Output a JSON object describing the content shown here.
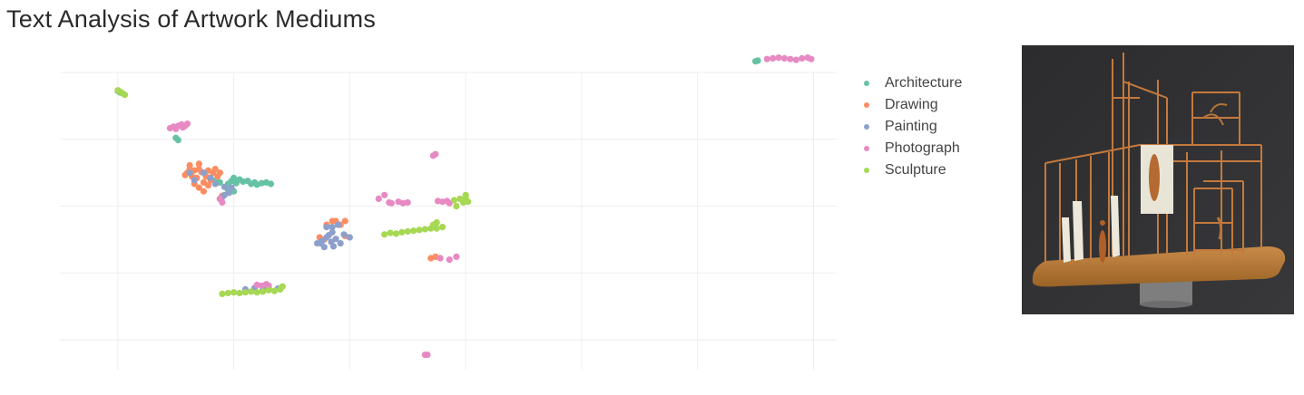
{
  "title": "Text Analysis of Artwork Mediums",
  "colors": {
    "Architecture": "#66c2a5",
    "Drawing": "#fc8d62",
    "Painting": "#8da0cb",
    "Photograph": "#e78ac3",
    "Sculpture": "#a6d854",
    "grid": "#eeeeee"
  },
  "artwork_image": {
    "icon": "wire-sculpture-house-photo"
  },
  "chart_data": {
    "type": "scatter",
    "title": "Text Analysis of Artwork Mediums",
    "xlabel": "",
    "ylabel": "",
    "xlim": [
      -0.5,
      6.2
    ],
    "ylim": [
      -0.4,
      3.6
    ],
    "grid": true,
    "legend_position": "right",
    "series": [
      {
        "name": "Architecture",
        "points": [
          [
            0.0,
            3.35
          ],
          [
            0.02,
            3.33
          ],
          [
            0.5,
            2.72
          ],
          [
            0.52,
            2.69
          ],
          [
            0.85,
            2.15
          ],
          [
            0.88,
            2.12
          ],
          [
            0.95,
            2.1
          ],
          [
            0.98,
            2.14
          ],
          [
            1.0,
            2.18
          ],
          [
            1.02,
            2.11
          ],
          [
            1.05,
            2.16
          ],
          [
            1.08,
            2.13
          ],
          [
            1.12,
            2.14
          ],
          [
            1.15,
            2.1
          ],
          [
            1.18,
            2.12
          ],
          [
            1.2,
            2.09
          ],
          [
            1.24,
            2.11
          ],
          [
            1.28,
            2.12
          ],
          [
            1.32,
            2.1
          ],
          [
            0.95,
            2.02
          ],
          [
            1.0,
            2.0
          ],
          [
            5.5,
            3.75
          ],
          [
            5.52,
            3.76
          ]
        ]
      },
      {
        "name": "Drawing",
        "points": [
          [
            0.58,
            2.22
          ],
          [
            0.6,
            2.25
          ],
          [
            0.62,
            2.3
          ],
          [
            0.64,
            2.2
          ],
          [
            0.66,
            2.28
          ],
          [
            0.68,
            2.18
          ],
          [
            0.7,
            2.3
          ],
          [
            0.72,
            2.26
          ],
          [
            0.74,
            2.12
          ],
          [
            0.76,
            2.2
          ],
          [
            0.78,
            2.28
          ],
          [
            0.8,
            2.15
          ],
          [
            0.82,
            2.25
          ],
          [
            0.84,
            2.3
          ],
          [
            0.86,
            2.2
          ],
          [
            0.66,
            2.1
          ],
          [
            0.7,
            2.05
          ],
          [
            0.74,
            2.0
          ],
          [
            0.78,
            2.08
          ],
          [
            0.62,
            2.35
          ],
          [
            0.7,
            2.37
          ],
          [
            0.88,
            2.25
          ],
          [
            0.9,
            1.94
          ],
          [
            0.88,
            1.9
          ],
          [
            1.8,
            1.55
          ],
          [
            1.88,
            1.6
          ],
          [
            1.92,
            1.55
          ],
          [
            1.96,
            1.6
          ],
          [
            1.74,
            1.38
          ],
          [
            1.78,
            1.35
          ],
          [
            1.96,
            1.4
          ],
          [
            1.85,
            1.6
          ],
          [
            2.7,
            1.1
          ],
          [
            2.74,
            1.12
          ],
          [
            2.78,
            1.1
          ]
        ]
      },
      {
        "name": "Painting",
        "points": [
          [
            0.62,
            2.25
          ],
          [
            0.66,
            2.15
          ],
          [
            0.74,
            2.25
          ],
          [
            0.8,
            2.18
          ],
          [
            0.84,
            2.1
          ],
          [
            0.92,
            2.06
          ],
          [
            0.96,
            1.98
          ],
          [
            0.98,
            2.05
          ],
          [
            0.92,
            1.95
          ],
          [
            0.9,
            1.92
          ],
          [
            1.72,
            1.3
          ],
          [
            1.76,
            1.33
          ],
          [
            1.8,
            1.38
          ],
          [
            1.84,
            1.32
          ],
          [
            1.88,
            1.36
          ],
          [
            1.92,
            1.3
          ],
          [
            1.95,
            1.42
          ],
          [
            2.0,
            1.38
          ],
          [
            1.85,
            1.45
          ],
          [
            1.85,
            1.52
          ],
          [
            1.8,
            1.52
          ],
          [
            1.9,
            1.55
          ],
          [
            1.78,
            1.25
          ],
          [
            1.86,
            1.26
          ],
          [
            1.82,
            1.41
          ],
          [
            1.75,
            1.3
          ],
          [
            1.1,
            0.68
          ],
          [
            1.18,
            0.7
          ],
          [
            1.25,
            0.68
          ],
          [
            1.3,
            0.7
          ],
          [
            1.38,
            0.69
          ]
        ]
      },
      {
        "name": "Photograph",
        "points": [
          [
            0.45,
            2.85
          ],
          [
            0.48,
            2.87
          ],
          [
            0.5,
            2.84
          ],
          [
            0.52,
            2.88
          ],
          [
            0.55,
            2.9
          ],
          [
            0.58,
            2.88
          ],
          [
            0.6,
            2.91
          ],
          [
            0.56,
            2.86
          ],
          [
            0.88,
            1.9
          ],
          [
            0.9,
            1.85
          ],
          [
            2.72,
            2.48
          ],
          [
            2.74,
            2.5
          ],
          [
            2.25,
            1.9
          ],
          [
            2.3,
            1.95
          ],
          [
            2.34,
            1.85
          ],
          [
            2.36,
            1.84
          ],
          [
            2.42,
            1.86
          ],
          [
            2.46,
            1.84
          ],
          [
            2.5,
            1.85
          ],
          [
            2.76,
            1.87
          ],
          [
            2.8,
            1.86
          ],
          [
            2.84,
            1.87
          ],
          [
            2.86,
            1.84
          ],
          [
            2.78,
            1.1
          ],
          [
            2.86,
            1.08
          ],
          [
            2.92,
            1.12
          ],
          [
            1.2,
            0.74
          ],
          [
            1.24,
            0.73
          ],
          [
            1.28,
            0.75
          ],
          [
            1.3,
            0.73
          ],
          [
            2.65,
            -0.2
          ],
          [
            2.67,
            -0.2
          ],
          [
            5.6,
            3.78
          ],
          [
            5.65,
            3.79
          ],
          [
            5.7,
            3.8
          ],
          [
            5.75,
            3.79
          ],
          [
            5.8,
            3.78
          ],
          [
            5.85,
            3.77
          ],
          [
            5.9,
            3.79
          ],
          [
            5.95,
            3.8
          ],
          [
            5.98,
            3.78
          ]
        ]
      },
      {
        "name": "Sculpture",
        "points": [
          [
            0.0,
            3.36
          ],
          [
            0.02,
            3.34
          ],
          [
            0.04,
            3.32
          ],
          [
            0.06,
            3.3
          ],
          [
            2.3,
            1.42
          ],
          [
            2.35,
            1.44
          ],
          [
            2.4,
            1.43
          ],
          [
            2.45,
            1.45
          ],
          [
            2.5,
            1.46
          ],
          [
            2.55,
            1.47
          ],
          [
            2.6,
            1.48
          ],
          [
            2.65,
            1.49
          ],
          [
            2.7,
            1.5
          ],
          [
            2.75,
            1.5
          ],
          [
            2.8,
            1.52
          ],
          [
            2.72,
            1.55
          ],
          [
            2.75,
            1.58
          ],
          [
            2.9,
            1.88
          ],
          [
            2.95,
            1.9
          ],
          [
            3.0,
            1.92
          ],
          [
            2.98,
            1.85
          ],
          [
            2.92,
            1.8
          ],
          [
            3.02,
            1.86
          ],
          [
            3.0,
            1.95
          ],
          [
            0.9,
            0.62
          ],
          [
            0.95,
            0.63
          ],
          [
            1.0,
            0.64
          ],
          [
            1.05,
            0.63
          ],
          [
            1.1,
            0.64
          ],
          [
            1.15,
            0.65
          ],
          [
            1.2,
            0.64
          ],
          [
            1.25,
            0.65
          ],
          [
            1.3,
            0.67
          ],
          [
            1.35,
            0.66
          ],
          [
            1.4,
            0.68
          ],
          [
            1.42,
            0.72
          ]
        ]
      }
    ]
  }
}
